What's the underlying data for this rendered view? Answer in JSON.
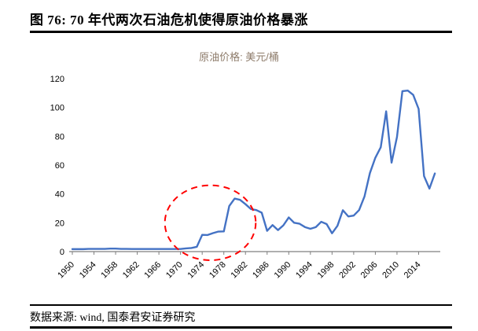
{
  "title": "图 76: 70 年代两次石油危机使得原油价格暴涨",
  "source": "数据来源: wind, 国泰君安证券研究",
  "chart_data": {
    "type": "line",
    "title": "原油价格: 美元/桶",
    "x": [
      1950,
      1951,
      1952,
      1953,
      1954,
      1955,
      1956,
      1957,
      1958,
      1959,
      1960,
      1961,
      1962,
      1963,
      1964,
      1965,
      1966,
      1967,
      1968,
      1969,
      1970,
      1971,
      1972,
      1973,
      1974,
      1975,
      1976,
      1977,
      1978,
      1979,
      1980,
      1981,
      1982,
      1983,
      1984,
      1985,
      1986,
      1987,
      1988,
      1989,
      1990,
      1991,
      1992,
      1993,
      1994,
      1995,
      1996,
      1997,
      1998,
      1999,
      2000,
      2001,
      2002,
      2003,
      2004,
      2005,
      2006,
      2007,
      2008,
      2009,
      2010,
      2011,
      2012,
      2013,
      2014,
      2015,
      2016,
      2017
    ],
    "values": [
      1.7,
      1.7,
      1.7,
      1.9,
      1.9,
      1.9,
      1.9,
      2.1,
      2.1,
      1.9,
      1.9,
      1.8,
      1.8,
      1.8,
      1.8,
      1.8,
      1.8,
      1.8,
      1.8,
      1.8,
      1.8,
      2.2,
      2.5,
      3.3,
      11.6,
      11.5,
      12.8,
      13.9,
      14.0,
      31.6,
      36.8,
      35.9,
      32.9,
      29.5,
      28.8,
      27.0,
      14.4,
      18.4,
      14.9,
      18.2,
      23.7,
      20.0,
      19.3,
      17.0,
      15.8,
      17.0,
      20.7,
      19.1,
      12.7,
      17.9,
      28.7,
      24.4,
      25.0,
      28.8,
      38.3,
      54.5,
      65.1,
      72.4,
      97.3,
      61.7,
      79.5,
      111.3,
      111.7,
      108.7,
      99.0,
      52.4,
      43.7,
      54.2
    ],
    "ylim": [
      0,
      120
    ],
    "yticks": [
      0,
      20,
      40,
      60,
      80,
      100,
      120
    ],
    "xticks": [
      1950,
      1954,
      1958,
      1962,
      1966,
      1970,
      1974,
      1978,
      1982,
      1986,
      1990,
      1994,
      1998,
      2002,
      2006,
      2010,
      2014
    ],
    "xlabel": "",
    "ylabel": "",
    "grid": false,
    "legend_position": "top-center",
    "line_color": "#4472c4",
    "axis_color": "#7f7f7f",
    "annotation": {
      "type": "dashed-ellipse",
      "note": "highlights the 1970s two oil crises",
      "color": "#ff0000",
      "center_year": 1975.5,
      "center_value": 20,
      "radius_years": 8.4,
      "radius_value": 26
    }
  }
}
